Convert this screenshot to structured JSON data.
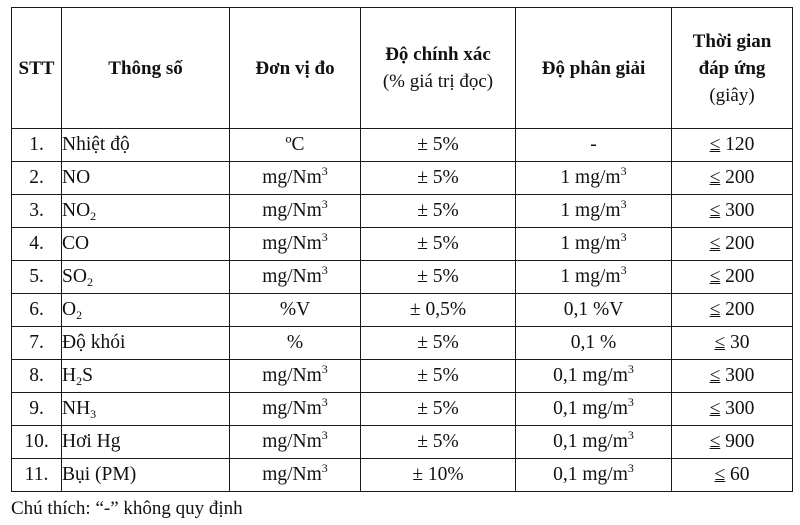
{
  "table": {
    "headers": {
      "stt": "STT",
      "parameter": "Thông số",
      "unit": "Đơn vị đo",
      "accuracy_title": "Độ chính xác",
      "accuracy_sub": "(% giá trị đọc)",
      "resolution": "Độ phân giải",
      "response_line1": "Thời gian",
      "response_line2": "đáp ứng",
      "response_sub": "(giây)"
    },
    "rows": [
      {
        "stt": "1.",
        "name": "Nhiệt độ",
        "name_sub": "",
        "name_tail": "",
        "unit": "ºC",
        "unit_sup": "",
        "accuracy": "± 5%",
        "resolution": "-",
        "resolution_sup": "",
        "le": "≤",
        "time": " 120"
      },
      {
        "stt": "2.",
        "name": "NO",
        "name_sub": "",
        "name_tail": "",
        "unit": "mg/Nm",
        "unit_sup": "3",
        "accuracy": "± 5%",
        "resolution": "1 mg/m",
        "resolution_sup": "3",
        "le": "≤",
        "time": " 200"
      },
      {
        "stt": "3.",
        "name": "NO",
        "name_sub": "2",
        "name_tail": "",
        "unit": "mg/Nm",
        "unit_sup": "3",
        "accuracy": "± 5%",
        "resolution": "1 mg/m",
        "resolution_sup": "3",
        "le": "≤",
        "time": " 300"
      },
      {
        "stt": "4.",
        "name": "CO",
        "name_sub": "",
        "name_tail": "",
        "unit": "mg/Nm",
        "unit_sup": "3",
        "accuracy": "± 5%",
        "resolution": "1 mg/m",
        "resolution_sup": "3",
        "le": "≤",
        "time": " 200"
      },
      {
        "stt": "5.",
        "name": "SO",
        "name_sub": "2",
        "name_tail": "",
        "unit": "mg/Nm",
        "unit_sup": "3",
        "accuracy": "± 5%",
        "resolution": "1 mg/m",
        "resolution_sup": "3",
        "le": "≤",
        "time": " 200"
      },
      {
        "stt": "6.",
        "name": "O",
        "name_sub": "2",
        "name_tail": "",
        "unit": "%V",
        "unit_sup": "",
        "accuracy": "± 0,5%",
        "resolution": "0,1 %V",
        "resolution_sup": "",
        "le": "≤",
        "time": " 200"
      },
      {
        "stt": "7.",
        "name": "Độ khói",
        "name_sub": "",
        "name_tail": "",
        "unit": "%",
        "unit_sup": "",
        "accuracy": "± 5%",
        "resolution": "0,1 %",
        "resolution_sup": "",
        "le": "≤",
        "time": " 30"
      },
      {
        "stt": "8.",
        "name": "H",
        "name_sub": "2",
        "name_tail": "S",
        "unit": "mg/Nm",
        "unit_sup": "3",
        "accuracy": "± 5%",
        "resolution": "0,1 mg/m",
        "resolution_sup": "3",
        "le": "≤",
        "time": " 300"
      },
      {
        "stt": "9.",
        "name": "NH",
        "name_sub": "3",
        "name_tail": "",
        "unit": "mg/Nm",
        "unit_sup": "3",
        "accuracy": "± 5%",
        "resolution": "0,1 mg/m",
        "resolution_sup": "3",
        "le": "≤",
        "time": " 300"
      },
      {
        "stt": "10.",
        "name": "Hơi Hg",
        "name_sub": "",
        "name_tail": "",
        "unit": "mg/Nm",
        "unit_sup": "3",
        "accuracy": "± 5%",
        "resolution": "0,1 mg/m",
        "resolution_sup": "3",
        "le": "≤",
        "time": " 900"
      },
      {
        "stt": "11.",
        "name": "Bụi (PM)",
        "name_sub": "",
        "name_tail": "",
        "unit": "mg/Nm",
        "unit_sup": "3",
        "accuracy": "± 10%",
        "resolution": "0,1 mg/m",
        "resolution_sup": "3",
        "le": "≤",
        "time": " 60"
      }
    ]
  },
  "note": "Chú thích: “-” không quy định"
}
